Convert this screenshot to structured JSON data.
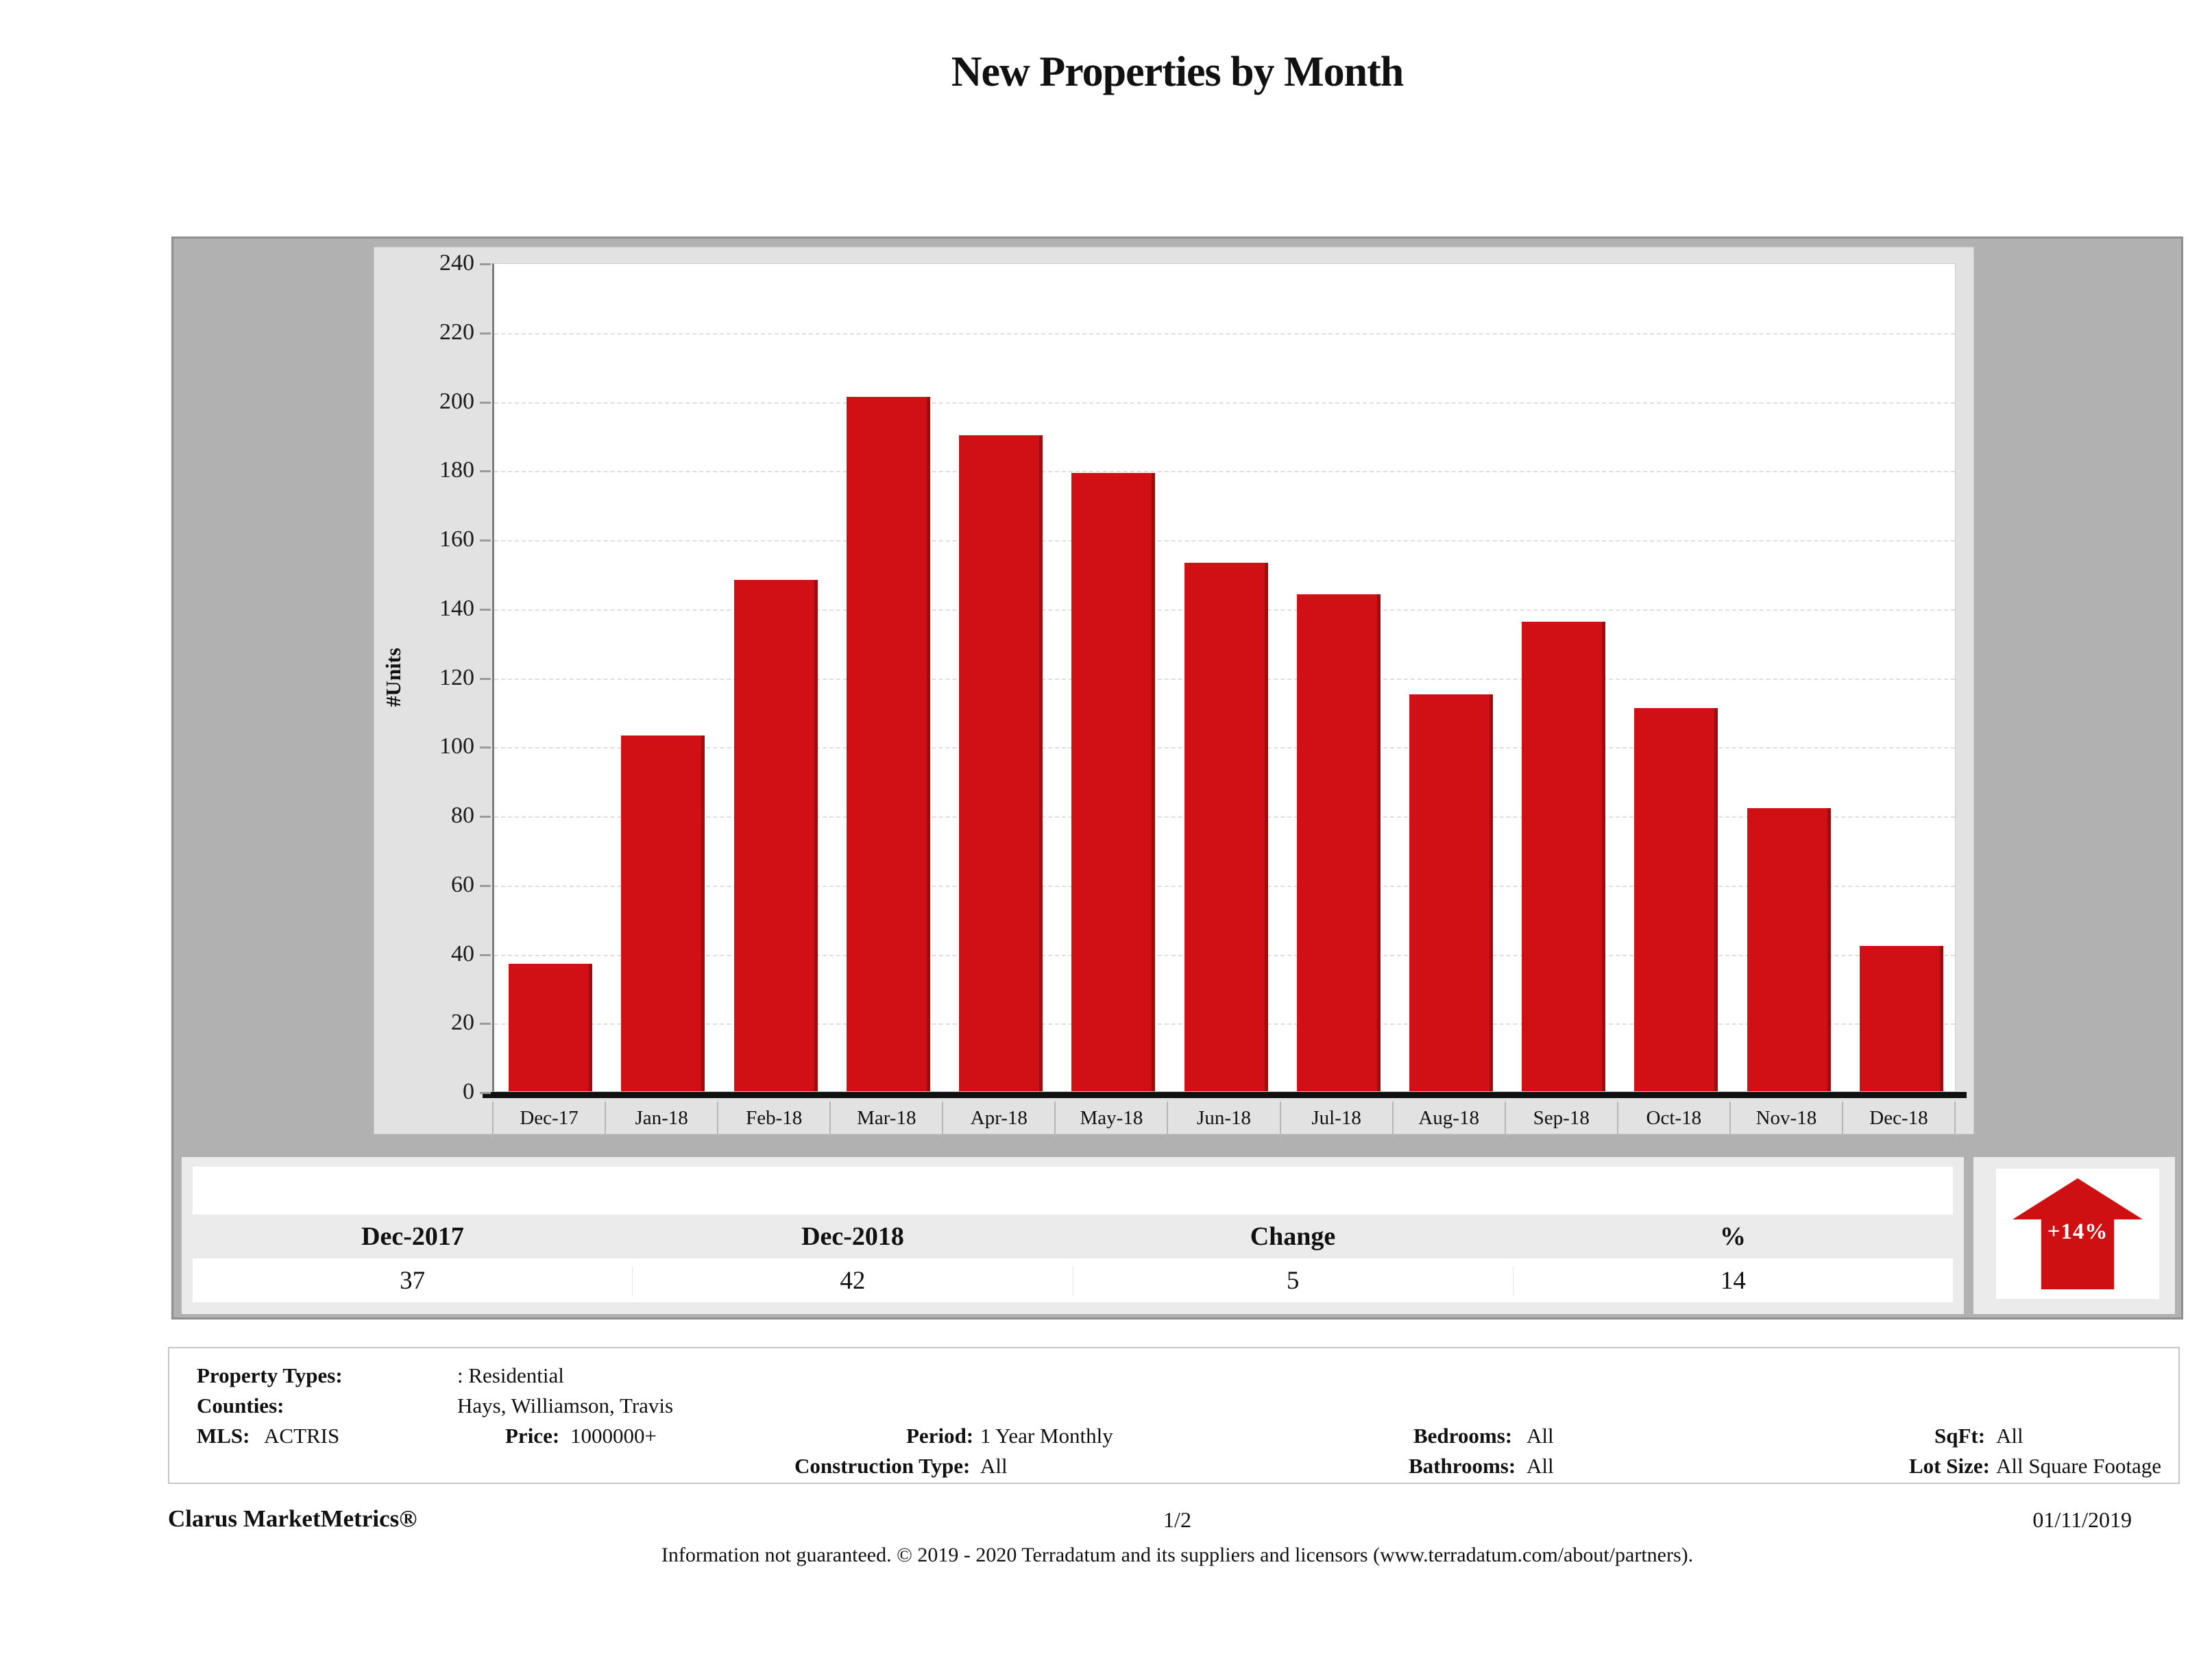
{
  "title": "New Properties by Month",
  "chart_data": {
    "type": "bar",
    "title": "New Properties by Month",
    "categories": [
      "Dec-17",
      "Jan-18",
      "Feb-18",
      "Mar-18",
      "Apr-18",
      "May-18",
      "Jun-18",
      "Jul-18",
      "Aug-18",
      "Sep-18",
      "Oct-18",
      "Nov-18",
      "Dec-18"
    ],
    "values": [
      37,
      103,
      148,
      201,
      190,
      179,
      153,
      144,
      115,
      136,
      111,
      82,
      42
    ],
    "xlabel": "",
    "ylabel": "#Units",
    "ylim": [
      0,
      240
    ],
    "ytick_step": 20,
    "grid": true,
    "legend": false,
    "bar_color": "#d01014"
  },
  "summary_table": {
    "headers": [
      "Dec-2017",
      "Dec-2018",
      "Change",
      "%"
    ],
    "values": [
      37,
      42,
      5,
      14
    ],
    "badge": "+14%",
    "badge_color": "#ce1013"
  },
  "filters": {
    "property_types_label": "Property Types:",
    "property_types_value": ": Residential",
    "counties_label": "Counties:",
    "counties_value": "Hays, Williamson, Travis",
    "mls_label": "MLS:",
    "mls_value": "ACTRIS",
    "price_label": "Price:",
    "price_value": "1000000+",
    "period_label": "Period:",
    "period_value": "1 Year Monthly",
    "construction_label": "Construction Type:",
    "construction_value": "All",
    "bedrooms_label": "Bedrooms:",
    "bedrooms_value": "All",
    "bathrooms_label": "Bathrooms:",
    "bathrooms_value": "All",
    "sqft_label": "SqFt:",
    "sqft_value": "All",
    "lotsize_label": "Lot Size:",
    "lotsize_value": "All Square Footage"
  },
  "footer": {
    "brand": "Clarus MarketMetrics®",
    "page": "1/2",
    "date": "01/11/2019",
    "disclaimer": "Information not guaranteed. © 2019 - 2020 Terradatum and its suppliers and licensors (www.terradatum.com/about/partners)."
  }
}
